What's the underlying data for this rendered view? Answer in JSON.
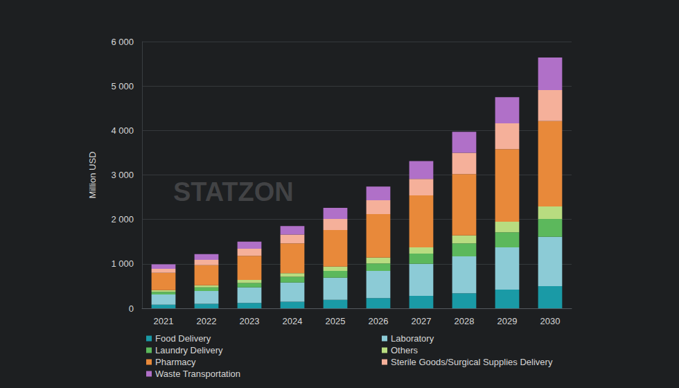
{
  "chart_data": {
    "type": "bar",
    "stacked": true,
    "grid": true,
    "legend": "bottom",
    "y_label": "Million USD",
    "annotations": [
      {
        "text": "STATZON"
      }
    ],
    "categories": [
      "2021",
      "2022",
      "2023",
      "2024",
      "2025",
      "2026",
      "2027",
      "2028",
      "2029",
      "2030"
    ],
    "ylim": [
      0,
      6000
    ],
    "yticks": [
      0,
      {
        "value": 1000,
        "label": "1 000"
      },
      {
        "value": 2000,
        "label": "2 000"
      },
      {
        "value": 3000,
        "label": "3 000"
      },
      {
        "value": 4000,
        "label": "4 000"
      },
      {
        "value": 5000,
        "label": "5 000"
      },
      {
        "value": 6000,
        "label": "6 000"
      }
    ],
    "series": [
      {
        "name": "Food Delivery",
        "color": "#1a9aa6",
        "values": [
          80,
          100,
          120,
          150,
          190,
          230,
          280,
          340,
          420,
          500
        ]
      },
      {
        "name": "Laboratory",
        "color": "#8ccbd6",
        "values": [
          230,
          290,
          350,
          430,
          500,
          610,
          720,
          830,
          950,
          1110
        ]
      },
      {
        "name": "Laundry Delivery",
        "color": "#5cb85c",
        "values": [
          60,
          80,
          100,
          130,
          150,
          170,
          230,
          290,
          340,
          400
        ]
      },
      {
        "name": "Others",
        "color": "#b8dc80",
        "values": [
          40,
          50,
          70,
          80,
          100,
          130,
          140,
          180,
          240,
          280
        ]
      },
      {
        "name": "Pharmacy",
        "color": "#e8893a",
        "values": [
          390,
          450,
          540,
          670,
          820,
          980,
          1170,
          1380,
          1630,
          1920
        ]
      },
      {
        "name": "Sterile Goods/Surgical Supplies Delivery",
        "color": "#f5b09a",
        "values": [
          90,
          120,
          160,
          200,
          250,
          310,
          370,
          480,
          580,
          700
        ]
      },
      {
        "name": "Waste Transportation",
        "color": "#b070c8",
        "values": [
          100,
          130,
          160,
          190,
          250,
          310,
          400,
          470,
          590,
          730
        ]
      }
    ]
  }
}
